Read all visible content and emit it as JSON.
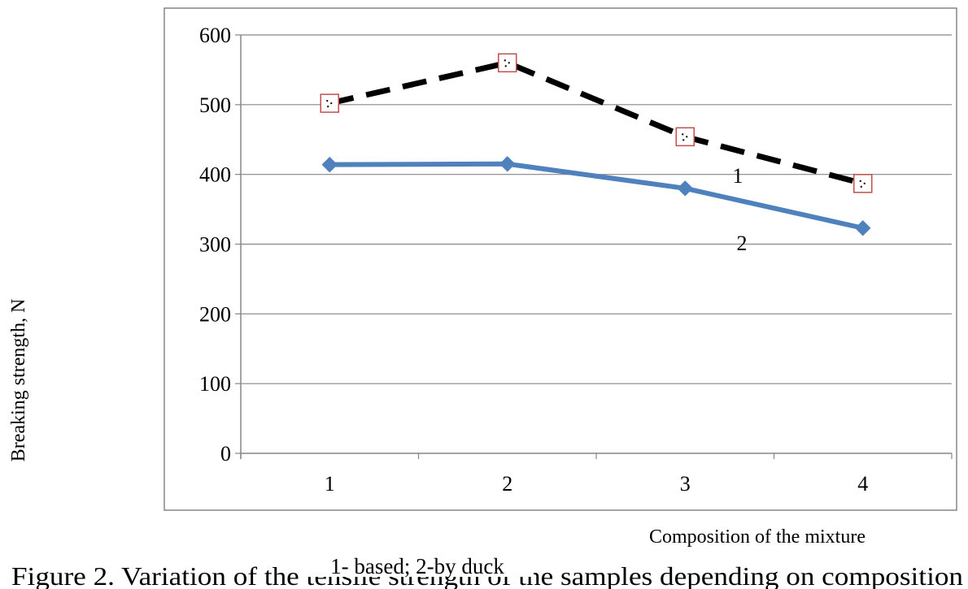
{
  "chart_data": {
    "type": "line",
    "categories": [
      "1",
      "2",
      "3",
      "4"
    ],
    "series": [
      {
        "id": "based",
        "label": "1",
        "values": [
          502,
          560,
          454,
          387
        ],
        "style": "dashed",
        "line_color": "#000000",
        "marker": "square",
        "marker_color": "#c0504d"
      },
      {
        "id": "duck",
        "label": "2",
        "values": [
          414,
          415,
          380,
          323
        ],
        "style": "solid",
        "line_color": "#4f81bd",
        "marker": "diamond",
        "marker_color": "#4f81bd"
      }
    ],
    "ylim": [
      0,
      600
    ],
    "yticks": [
      0,
      100,
      200,
      300,
      400,
      500,
      600
    ],
    "ylabel": "Breaking strength, N",
    "xlabel": "Composition of the mixture",
    "legend_note": "1- based; 2-by duck",
    "caption": "Figure 2. Variation of the tensile strength of the samples depending on composition",
    "grid": true
  }
}
